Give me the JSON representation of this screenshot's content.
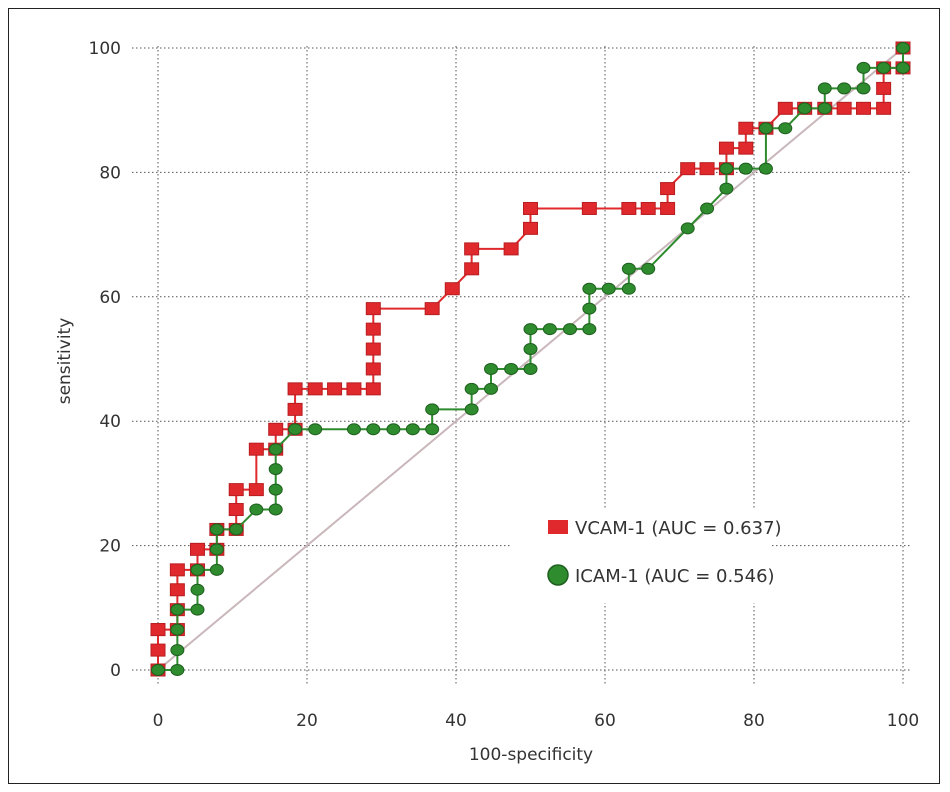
{
  "chart_data": {
    "type": "line",
    "title": "",
    "xlabel": "100-specificity",
    "ylabel": "sensitivity",
    "xlim": [
      0,
      100
    ],
    "ylim": [
      0,
      100
    ],
    "x_ticks": [
      "0",
      "20",
      "40",
      "60",
      "80",
      "100"
    ],
    "y_ticks": [
      "0",
      "20",
      "40",
      "60",
      "80",
      "100"
    ],
    "grid": true,
    "legend_position": "right",
    "reference_line": {
      "from": [
        0,
        0
      ],
      "to": [
        100,
        100
      ]
    },
    "series": [
      {
        "name": "VCAM-1 (AUC = 0.637)",
        "marker": "square",
        "color": "#e0292c",
        "points": [
          [
            0,
            0
          ],
          [
            0,
            3.2
          ],
          [
            0,
            6.5
          ],
          [
            0,
            6.5
          ],
          [
            2.6,
            6.5
          ],
          [
            2.6,
            9.7
          ],
          [
            2.6,
            12.9
          ],
          [
            2.6,
            16.1
          ],
          [
            5.3,
            16.1
          ],
          [
            5.3,
            19.4
          ],
          [
            7.9,
            19.4
          ],
          [
            7.9,
            22.6
          ],
          [
            10.5,
            22.6
          ],
          [
            10.5,
            25.8
          ],
          [
            10.5,
            29
          ],
          [
            13.2,
            29
          ],
          [
            13.2,
            35.5
          ],
          [
            15.8,
            35.5
          ],
          [
            15.8,
            38.7
          ],
          [
            18.4,
            38.7
          ],
          [
            18.4,
            41.9
          ],
          [
            18.4,
            45.2
          ],
          [
            21.1,
            45.2
          ],
          [
            23.7,
            45.2
          ],
          [
            26.3,
            45.2
          ],
          [
            28.9,
            45.2
          ],
          [
            28.9,
            48.4
          ],
          [
            28.9,
            51.6
          ],
          [
            28.9,
            54.8
          ],
          [
            28.9,
            58.1
          ],
          [
            36.8,
            58.1
          ],
          [
            39.5,
            61.3
          ],
          [
            42.1,
            64.5
          ],
          [
            42.1,
            67.7
          ],
          [
            47.4,
            67.7
          ],
          [
            50,
            71
          ],
          [
            50,
            74.2
          ],
          [
            57.9,
            74.2
          ],
          [
            63.2,
            74.2
          ],
          [
            65.8,
            74.2
          ],
          [
            68.4,
            74.2
          ],
          [
            68.4,
            77.4
          ],
          [
            71.1,
            80.6
          ],
          [
            73.7,
            80.6
          ],
          [
            76.3,
            80.6
          ],
          [
            76.3,
            83.9
          ],
          [
            78.9,
            83.9
          ],
          [
            78.9,
            87.1
          ],
          [
            81.6,
            87.1
          ],
          [
            84.2,
            90.3
          ],
          [
            86.8,
            90.3
          ],
          [
            89.5,
            90.3
          ],
          [
            92.1,
            90.3
          ],
          [
            94.7,
            90.3
          ],
          [
            97.4,
            90.3
          ],
          [
            97.4,
            93.5
          ],
          [
            97.4,
            96.8
          ],
          [
            100,
            96.8
          ],
          [
            100,
            100
          ]
        ]
      },
      {
        "name": "ICAM-1 (AUC = 0.546)",
        "marker": "circle",
        "color": "#2e8b2e",
        "points": [
          [
            0,
            0
          ],
          [
            2.6,
            0
          ],
          [
            2.6,
            3.2
          ],
          [
            2.6,
            6.5
          ],
          [
            2.6,
            9.7
          ],
          [
            5.3,
            9.7
          ],
          [
            5.3,
            12.9
          ],
          [
            5.3,
            16.1
          ],
          [
            7.9,
            16.1
          ],
          [
            7.9,
            19.4
          ],
          [
            7.9,
            22.6
          ],
          [
            10.5,
            22.6
          ],
          [
            13.2,
            25.8
          ],
          [
            15.8,
            25.8
          ],
          [
            15.8,
            29
          ],
          [
            15.8,
            32.3
          ],
          [
            15.8,
            35.5
          ],
          [
            18.4,
            38.7
          ],
          [
            21.1,
            38.7
          ],
          [
            26.3,
            38.7
          ],
          [
            28.9,
            38.7
          ],
          [
            31.6,
            38.7
          ],
          [
            34.2,
            38.7
          ],
          [
            36.8,
            38.7
          ],
          [
            36.8,
            41.9
          ],
          [
            42.1,
            41.9
          ],
          [
            42.1,
            45.2
          ],
          [
            44.7,
            45.2
          ],
          [
            44.7,
            48.4
          ],
          [
            47.4,
            48.4
          ],
          [
            50,
            48.4
          ],
          [
            50,
            51.6
          ],
          [
            50,
            54.8
          ],
          [
            52.6,
            54.8
          ],
          [
            55.3,
            54.8
          ],
          [
            57.9,
            54.8
          ],
          [
            57.9,
            58.1
          ],
          [
            57.9,
            61.3
          ],
          [
            60.5,
            61.3
          ],
          [
            63.2,
            61.3
          ],
          [
            63.2,
            64.5
          ],
          [
            65.8,
            64.5
          ],
          [
            71.1,
            71
          ],
          [
            73.7,
            74.2
          ],
          [
            76.3,
            77.4
          ],
          [
            76.3,
            80.6
          ],
          [
            78.9,
            80.6
          ],
          [
            81.6,
            80.6
          ],
          [
            81.6,
            87.1
          ],
          [
            84.2,
            87.1
          ],
          [
            86.8,
            90.3
          ],
          [
            89.5,
            90.3
          ],
          [
            89.5,
            93.5
          ],
          [
            92.1,
            93.5
          ],
          [
            94.7,
            93.5
          ],
          [
            94.7,
            96.8
          ],
          [
            97.4,
            96.8
          ],
          [
            100,
            96.8
          ],
          [
            100,
            100
          ]
        ]
      }
    ]
  }
}
